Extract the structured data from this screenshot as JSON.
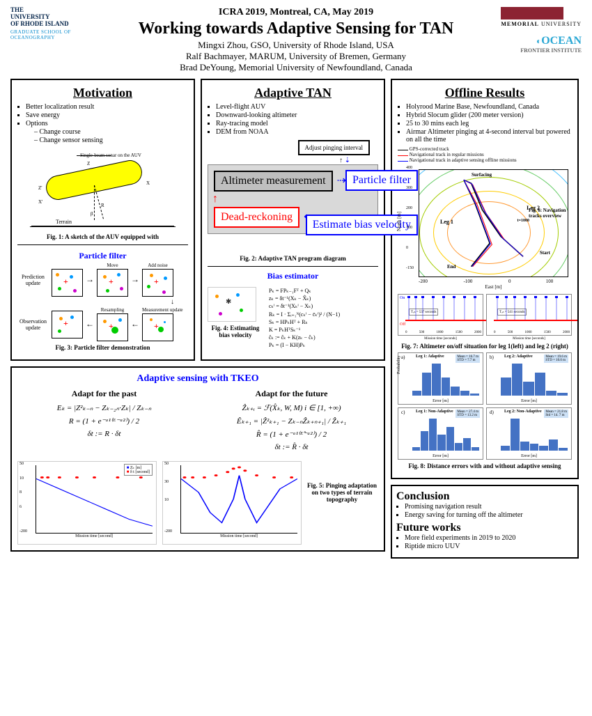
{
  "header": {
    "conference": "ICRA 2019, Montreal, CA, May 2019",
    "title": "Working towards Adaptive Sensing for TAN",
    "author1": "Mingxi Zhou, GSO, University of Rhode Island, USA",
    "author2": "Ralf Bachmayer, MARUM, University of Bremen, Germany",
    "author3": "Brad DeYoung, Memorial University of Newfoundland, Canada",
    "uri_line1": "THE",
    "uri_line2": "UNIVERSITY",
    "uri_line3": "OF RHODE ISLAND",
    "uri_sub": "GRADUATE SCHOOL OF OCEANOGRAPHY",
    "mun_line1": "MEMORIAL",
    "mun_line2": "UNIVERSITY",
    "ofi_brand": "OCEAN",
    "ofi_sub": "FRONTIER INSTITUTE"
  },
  "motivation": {
    "title": "Motivation",
    "b1": "Better localization result",
    "b2": "Save energy",
    "b3": "Options",
    "s1": "Change course",
    "s2": "Change sensor sensing",
    "sonar_label": "Single-beam sonar on the AUV",
    "xprime": "X'",
    "zprime": "Z'",
    "x": "X",
    "z": "Z",
    "r": "R",
    "beta": "β",
    "terrain": "Terrain",
    "fig1": "Fig. 1: A sketch of the AUV equipped with"
  },
  "adaptive_tan": {
    "title": "Adaptive TAN",
    "b1": "Level-flight AUV",
    "b2": "Downward-looking altimeter",
    "b3": "Ray-tracing model",
    "b4": "DEM from NOAA",
    "adjust": "Adjust pinging interval",
    "alt_meas": "Altimeter measurement",
    "dead": "Dead-reckoning",
    "pf": "Particle filter",
    "bias": "Estimate bias velocity",
    "fig2": "Fig. 2: Adaptive TAN program diagram"
  },
  "particle_filter": {
    "title": "Particle filter",
    "move": "Move",
    "noise": "Add noise",
    "pred": "Prediction update",
    "meas": "Measurement update",
    "resamp": "Resampling",
    "obs": "Observation update",
    "fig3": "Fig. 3: Particle filter demonstration"
  },
  "bias_est": {
    "title": "Bias estimator",
    "fig4": "Fig. 4: Estimating bias velocity",
    "eq1": "Pₖ = FPₖ₋₁Fᵀ + Qₖ",
    "eq2": "zₖ = δt⁻¹(Xₖ − X̂ₖ)",
    "eq3": "cₖⁱ = δt⁻¹(Xₖⁱ − Xₖ)",
    "eq4": "Rₖ = I · Σᵢ₌₁ᴺ(cₖⁱ − c̄ₖⁱ)² / (N−1)",
    "eq5": "Sₖ = HPₖHᵀ + Rₖ",
    "eq6": "K = PₖHᵀSₖ⁻¹",
    "eq7": "ĉₖ := ĉₖ + K(zₖ − ĉₖ)",
    "eq8": "Pₖ = (I − KH)Pₖ"
  },
  "adaptive_sensing": {
    "title": "Adaptive sensing with TKEO",
    "past": "Adapt for the past",
    "future": "Adapt for the future",
    "eq_past1": "Eₖ = |Z²ₖ₋ₙ − Zₖ₋₂ₙ·Zₖ| / Zₖ₋ₙ",
    "eq_past2": "R = (1 + e⁻ᵃ¹⁽ᴱ⁻ᵃ²⁾) / 2",
    "eq_past3": "δt := R · δt",
    "eq_fut1": "Ẑₖ₊ᵢ = ℱ(X̂ₖ, W, M)   i ∈ [1, +∞)",
    "eq_fut2": "Êₖ₊₁ = |Ẑ²ₖ₊₁ − Zₖ₋ₙẐₖ₊ₙ₊₁| / Ẑₖ₊₁",
    "eq_fut3": "R̂ = (1 + e⁻ᵃ¹⁽ᴱ̂⁻ᵃ²⁾) / 2",
    "eq_fut4": "δt := R̂ · δt",
    "fig5": "Fig. 5: Pinging adaptation on two types of terrain topography",
    "legend_z": "Zₖ [m]",
    "legend_dt": "δ t [second]",
    "xlabel": "Mission time [second]",
    "left_xlim": [
      0,
      2000
    ],
    "right_xlim": [
      0,
      3000
    ],
    "left_ylim": [
      -200,
      50
    ],
    "right_ylim": [
      -200,
      50
    ],
    "blue_color": "#0000ff",
    "red_color": "#ff0000"
  },
  "offline": {
    "title": "Offline Results",
    "b1": "Holyrood Marine Base, Newfoundland, Canada",
    "b2": "Hybrid Slocum glider (200 meter version)",
    "b3": "25 to 30 mins each leg",
    "b4": "Airmar Altimeter pinging at 4-second interval but powered on all the time",
    "leg1": "GPS-corrected track",
    "leg2": "Navigational track in regular missions",
    "leg3": "Navigational track in adaptive sensing offline missions",
    "leg1_color": "#000000",
    "leg2_color": "#ff0000",
    "leg3_color": "#0000ff",
    "map": {
      "surfacing": "Surfacing",
      "leg1l": "Leg 1",
      "leg2l": "Leg 2",
      "start": "Start",
      "end": "End",
      "t1000": "t=1000",
      "xlabel": "East [m]",
      "ylabel": "North [m]",
      "xlim": [
        -200,
        150
      ],
      "ylim": [
        -150,
        400
      ],
      "xticks": [
        -200,
        -100,
        0,
        100
      ],
      "yticks": [
        -150,
        -100,
        -50,
        0,
        50,
        100,
        150,
        200,
        250,
        300,
        350,
        400
      ],
      "contour_colors": [
        "#4dc3ff",
        "#66cc66",
        "#ffcc00",
        "#ff9933",
        "#ff6600"
      ]
    },
    "fig6": "Fig. 6: Navigation tracks overview",
    "onoff": {
      "on": "On",
      "off": "Off",
      "t_left": "Tₒₙ = 537 seconds",
      "t_right": "Tₒₙ = 541 seconds",
      "xlabel": "Mission time [seconds]",
      "xlim": [
        0,
        2000
      ],
      "xticks": [
        0,
        500,
        1000,
        1500,
        2000
      ],
      "on_color": "#0000ff",
      "off_color": "#ff0000"
    },
    "fig7": "Fig. 7: Altimeter on/off situation for leg 1(left) and leg 2 (right)",
    "hist": {
      "a": {
        "tag": "a)",
        "label": "Leg 1: Adaptive",
        "mean": "Mean = 16.7 m",
        "std": "STD = 7.7 m",
        "bars": [
          0.05,
          0.25,
          0.35,
          0.2,
          0.1,
          0.05,
          0.02
        ]
      },
      "b": {
        "tag": "b)",
        "label": "Leg 2: Adaptive",
        "mean": "Mean = 19.6 m",
        "std": "STD = 10.0 m",
        "bars": [
          0.2,
          0.35,
          0.15,
          0.25,
          0.05,
          0.03
        ]
      },
      "c": {
        "tag": "c)",
        "label": "Leg 1: Non-Adaptive",
        "mean": "Mean = 27.4 m",
        "std": "STD = 13.2 m",
        "bars": [
          0.02,
          0.12,
          0.2,
          0.1,
          0.15,
          0.05,
          0.08,
          0.02
        ]
      },
      "d": {
        "tag": "d)",
        "label": "Leg 2: Non-Adaptive",
        "mean": "Mean = 21.8 m",
        "std": "Std = 14. 7 m",
        "bars": [
          0.05,
          0.35,
          0.1,
          0.08,
          0.05,
          0.12,
          0.03
        ]
      },
      "xlabel": "Error [m]",
      "ylabel": "Probability",
      "xlim": [
        0,
        60
      ],
      "ylim": [
        0,
        0.4
      ],
      "bar_color": "#4472c4"
    },
    "fig8": "Fig. 8: Distance errors with and without adaptive sensing"
  },
  "conclusion": {
    "title": "Conclusion",
    "b1": "Promising navigation result",
    "b2": "Energy saving for turning off the altimeter",
    "fw_title": "Future works",
    "fw1": "More field experiments in 2019 to 2020",
    "fw2": "Riptide micro UUV"
  }
}
